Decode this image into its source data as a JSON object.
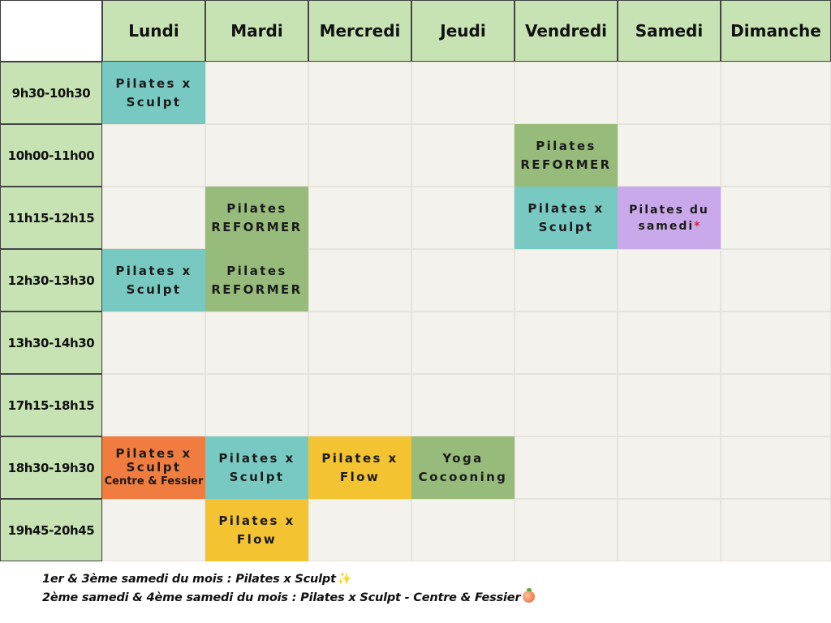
{
  "days": [
    "Lundi",
    "Mardi",
    "Mercredi",
    "Jeudi",
    "Vendredi",
    "Samedi",
    "Dimanche"
  ],
  "slots": [
    "9h30-10h30",
    "10h00-11h00",
    "11h15-12h15",
    "12h30-13h30",
    "13h30-14h30",
    "17h15-18h15",
    "18h30-19h30",
    "19h45-20h45"
  ],
  "classes": [
    {
      "id": "pilates-sculpt-lundi-0930",
      "lines": [
        "Pilates x",
        "Sculpt"
      ],
      "color": "#78c9c1"
    },
    {
      "id": "pilates-reformer-vendredi-1000",
      "lines": [
        "Pilates",
        "REFORMER"
      ],
      "color": "#96bb7a"
    },
    {
      "id": "pilates-reformer-mardi-1115",
      "lines": [
        "Pilates",
        "REFORMER"
      ],
      "color": "#96bb7a"
    },
    {
      "id": "pilates-sculpt-vendredi-1115",
      "lines": [
        "Pilates x",
        "Sculpt"
      ],
      "color": "#78c9c1"
    },
    {
      "id": "pilates-samedi-1115",
      "lines": [
        "Pilates du",
        "samedi"
      ],
      "asterisk": "*",
      "color": "#c9a9ea"
    },
    {
      "id": "pilates-sculpt-lundi-1230",
      "lines": [
        "Pilates x",
        "Sculpt"
      ],
      "color": "#78c9c1"
    },
    {
      "id": "pilates-reformer-mardi-1230",
      "lines": [
        "Pilates",
        "REFORMER"
      ],
      "color": "#96bb7a"
    },
    {
      "id": "pilates-sculpt-fessier-lundi-1830",
      "lines": [
        "Pilates x",
        "Sculpt",
        "Centre & Fessier"
      ],
      "color": "#f07d3f"
    },
    {
      "id": "pilates-sculpt-mardi-1830",
      "lines": [
        "Pilates x",
        "Sculpt"
      ],
      "color": "#78c9c1"
    },
    {
      "id": "pilates-flow-mercredi-1830",
      "lines": [
        "Pilates x",
        "Flow"
      ],
      "color": "#f3c331"
    },
    {
      "id": "yoga-cocooning-jeudi-1830",
      "lines": [
        "Yoga",
        "Cocooning"
      ],
      "color": "#96bb7a"
    },
    {
      "id": "pilates-flow-mardi-1945",
      "lines": [
        "Pilates x",
        "Flow"
      ],
      "color": "#f3c331"
    }
  ],
  "notes": [
    {
      "text": "1er & 3ème samedi du mois : Pilates x Sculpt",
      "icon": "sparkles-icon",
      "glyph": "✨"
    },
    {
      "text": "2ème samedi & 4ème samedi du mois : Pilates x Sculpt - Centre & Fessier",
      "icon": "peach-icon"
    }
  ],
  "colors": {
    "header_green": "#c7e3b4",
    "teal": "#78c9c1",
    "green": "#96bb7a",
    "purple": "#c9a9ea",
    "orange": "#f07d3f",
    "yellow": "#f3c331",
    "empty": "#f4f2ed"
  }
}
